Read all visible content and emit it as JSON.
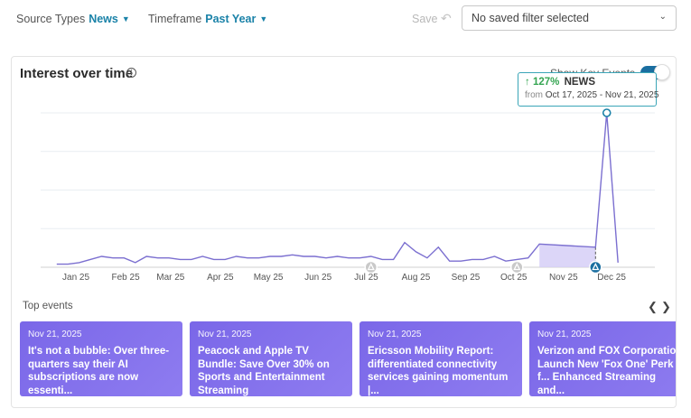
{
  "filters": {
    "source_label": "Source Types",
    "source_value": "News",
    "timeframe_label": "Timeframe",
    "timeframe_value": "Past Year"
  },
  "actions": {
    "save_label": "Save"
  },
  "saved_filter": {
    "value": "No saved filter selected"
  },
  "panel": {
    "title": "Interest over time",
    "key_events_label": "Show Key Events",
    "key_events_on": true
  },
  "tooltip": {
    "arrow": "↑",
    "percent": "127%",
    "series": "NEWS",
    "from_label": "from",
    "range": "Oct 17, 2025 - Nov 21, 2025"
  },
  "colors": {
    "accent": "#1a82a8",
    "line": "#7b6fd0",
    "highlight_fill": "#d6cff7",
    "card": "#7a67e8"
  },
  "chart_data": {
    "type": "line",
    "title": "Interest over time",
    "xlabel": "",
    "ylabel": "",
    "x_ticks": [
      "Jan 25",
      "Feb 25",
      "Mar 25",
      "Apr 25",
      "May 25",
      "Jun 25",
      "Jul 25",
      "Aug 25",
      "Sep 25",
      "Oct 25",
      "Nov 25",
      "Dec 25"
    ],
    "ylim": [
      0,
      100
    ],
    "grid": true,
    "x": [
      "2024-12-20",
      "2024-12-27",
      "2025-01-03",
      "2025-01-10",
      "2025-01-17",
      "2025-01-24",
      "2025-01-31",
      "2025-02-07",
      "2025-02-14",
      "2025-02-21",
      "2025-02-28",
      "2025-03-07",
      "2025-03-14",
      "2025-03-21",
      "2025-03-28",
      "2025-04-04",
      "2025-04-11",
      "2025-04-18",
      "2025-04-25",
      "2025-05-02",
      "2025-05-09",
      "2025-05-16",
      "2025-05-23",
      "2025-05-30",
      "2025-06-06",
      "2025-06-13",
      "2025-06-20",
      "2025-06-27",
      "2025-07-04",
      "2025-07-11",
      "2025-07-18",
      "2025-07-25",
      "2025-08-01",
      "2025-08-08",
      "2025-08-15",
      "2025-08-22",
      "2025-08-29",
      "2025-09-05",
      "2025-09-12",
      "2025-09-19",
      "2025-09-26",
      "2025-10-03",
      "2025-10-10",
      "2025-10-17",
      "2025-11-21",
      "2025-11-28",
      "2025-12-05"
    ],
    "series": [
      {
        "values": [
          2,
          2,
          3,
          5,
          7,
          6,
          6,
          3,
          7,
          6,
          6,
          5,
          5,
          7,
          5,
          5,
          7,
          6,
          6,
          7,
          7,
          8,
          7,
          7,
          6,
          7,
          6,
          6,
          7,
          5,
          5,
          16,
          10,
          6,
          13,
          4,
          4,
          5,
          5,
          7,
          4,
          5,
          6,
          15,
          13,
          100,
          3
        ],
        "highlight_range": [
          "2025-10-17",
          "2025-11-21"
        ]
      }
    ],
    "key_events": [
      "2025-07-04",
      "2025-10-03",
      "2025-11-21"
    ]
  },
  "top_events": {
    "label": "Top events",
    "prev_icon": "chevron-left-icon",
    "next_icon": "chevron-right-icon",
    "items": [
      {
        "date": "Nov 21, 2025",
        "title": "It's not a bubble: Over three-quarters say their AI subscriptions are now essenti..."
      },
      {
        "date": "Nov 21, 2025",
        "title": "Peacock and Apple TV Bundle: Save Over 30% on Sports and Entertainment Streaming"
      },
      {
        "date": "Nov 21, 2025",
        "title": "Ericsson Mobility Report: differentiated connectivity services gaining momentum |..."
      },
      {
        "date": "Nov 21, 2025",
        "title": "Verizon and FOX Corporation Launch New 'Fox One' Perk f... Enhanced Streaming and..."
      }
    ]
  }
}
